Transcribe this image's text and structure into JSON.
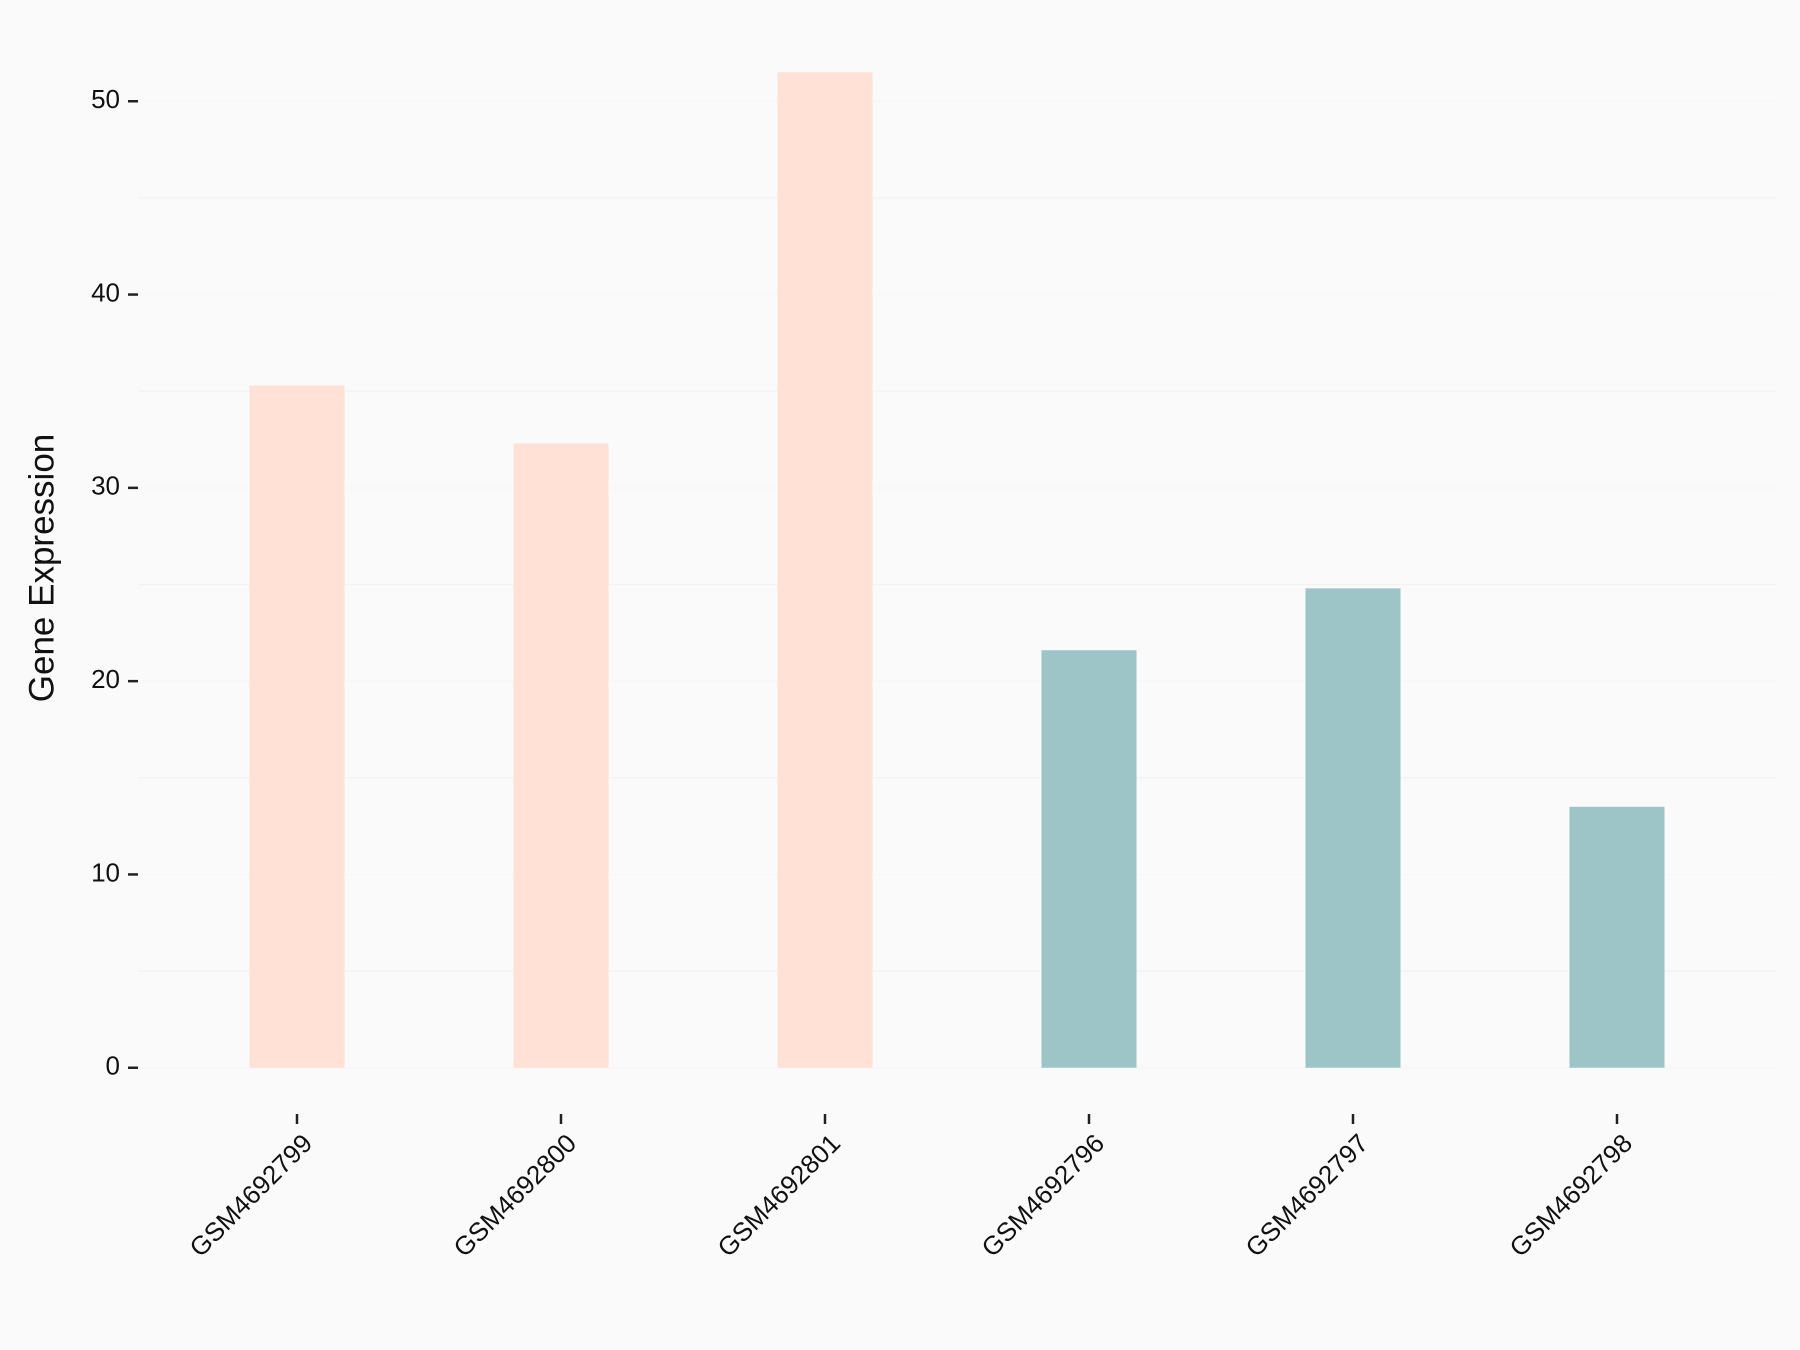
{
  "chart_data": {
    "type": "bar",
    "y_label": "Gene Expression",
    "categories": [
      "GSM4692799",
      "GSM4692800",
      "GSM4692801",
      "GSM4692796",
      "GSM4692797",
      "GSM4692798"
    ],
    "values": [
      35.3,
      32.3,
      51.5,
      21.6,
      24.8,
      13.5
    ],
    "colors": [
      "#ffe1d6",
      "#ffe1d6",
      "#ffe1d6",
      "#9dc4c7",
      "#9dc4c7",
      "#9dc4c7"
    ],
    "ylim": [
      -2.6,
      54.1
    ],
    "yticks": [
      0,
      10,
      20,
      30,
      40,
      50
    ],
    "minor_yticks": [
      5,
      15,
      25,
      35,
      45
    ],
    "grid": true
  }
}
